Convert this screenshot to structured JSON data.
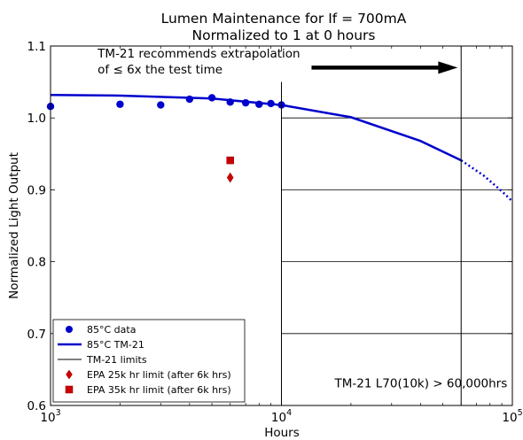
{
  "chart_data": {
    "type": "scatter",
    "title": "Lumen Maintenance for If = 700mA",
    "subtitle": "Normalized to 1 at 0 hours",
    "xlabel": "Hours",
    "ylabel": "Normalized Light Output",
    "xscale": "log",
    "xlim": [
      1000,
      100000
    ],
    "ylim": [
      0.6,
      1.1
    ],
    "xticks": [
      {
        "value": 1000,
        "base": "10",
        "exp": "3"
      },
      {
        "value": 10000,
        "base": "10",
        "exp": "4"
      },
      {
        "value": 100000,
        "base": "10",
        "exp": "5"
      }
    ],
    "yticks": [
      {
        "value": 0.6,
        "label": "0.6"
      },
      {
        "value": 0.7,
        "label": "0.7"
      },
      {
        "value": 0.8,
        "label": "0.8"
      },
      {
        "value": 0.9,
        "label": "0.9"
      },
      {
        "value": 1.0,
        "label": "1.0"
      },
      {
        "value": 1.1,
        "label": "1.1"
      }
    ],
    "grid": "partial",
    "legend_position": "lower-left",
    "series": [
      {
        "name": "85°C data",
        "kind": "points",
        "color": "#0000cc",
        "x": [
          1000,
          2000,
          3000,
          4000,
          5000,
          6000,
          7000,
          8000,
          9000,
          10000
        ],
        "y": [
          1.016,
          1.019,
          1.018,
          1.026,
          1.028,
          1.022,
          1.021,
          1.019,
          1.02,
          1.018
        ]
      },
      {
        "name": "85°C TM-21",
        "kind": "line",
        "color": "#0000cc",
        "x": [
          1000,
          2000,
          5000,
          10000,
          20000,
          40000,
          60000
        ],
        "y": [
          1.032,
          1.031,
          1.027,
          1.018,
          1.001,
          0.968,
          0.941
        ]
      },
      {
        "kind": "dotted-line",
        "color": "#0000cc",
        "x": [
          60000,
          75000,
          90000,
          100000
        ],
        "y": [
          0.941,
          0.92,
          0.898,
          0.884
        ]
      },
      {
        "name": "TM-21 limits",
        "kind": "vline",
        "color": "#000000",
        "x": [
          10000,
          60000
        ],
        "y_top": [
          1.05,
          1.1
        ]
      },
      {
        "name": "EPA 25k hr limit (after 6k hrs)",
        "kind": "diamond",
        "color": "#cc0000",
        "x": [
          6000
        ],
        "y": [
          0.917
        ]
      },
      {
        "name": "EPA 35k hr limit (after 6k hrs)",
        "kind": "square",
        "color": "#cc0000",
        "x": [
          6000
        ],
        "y": [
          0.941
        ]
      }
    ],
    "annotations": [
      {
        "text": "TM-21 recommends extrapolation",
        "x": 1600,
        "y": 1.084
      },
      {
        "text": "of ≤ 6x the test time",
        "x": 1600,
        "y": 1.062
      },
      {
        "text": "TM-21 L70(10k) > 60,000hrs",
        "x": 17000,
        "y": 0.625
      }
    ],
    "arrow": {
      "x_start": 13500,
      "x_end": 58000,
      "y": 1.07
    }
  }
}
